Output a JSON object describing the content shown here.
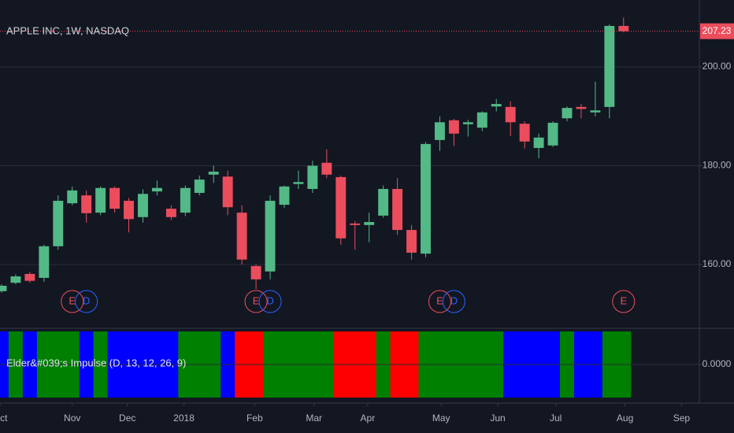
{
  "chart_data": [
    {
      "type": "candlestick",
      "title": "APPLE INC, 1W, NASDAQ",
      "categories": [
        null,
        null,
        null,
        null,
        null,
        null,
        null,
        null,
        null,
        null,
        null,
        null,
        null,
        null,
        null,
        null,
        null,
        null,
        null,
        null,
        null,
        null,
        null,
        null,
        null,
        null,
        null,
        null,
        null,
        null,
        null,
        null,
        null,
        null,
        null,
        null,
        null,
        null,
        null,
        null,
        null,
        null,
        null,
        null,
        null
      ],
      "open": [
        154.6,
        156.3,
        158.1,
        157.3,
        163.7,
        172.4,
        174,
        170.5,
        175.5,
        172.9,
        169.6,
        174.8,
        171.3,
        170.5,
        174.5,
        178.2,
        177.8,
        170.5,
        159.7,
        158.6,
        172.1,
        176.3,
        175.3,
        180.6,
        177.7,
        168.3,
        168,
        169.9,
        175.3,
        167,
        162.2,
        185.2,
        189.2,
        188.4,
        187.7,
        192,
        191.9,
        188.5,
        183.6,
        184.1,
        189.6,
        191.9,
        190.8,
        191.9,
        208.3
      ],
      "high": [
        156,
        158,
        158.5,
        164,
        174,
        175.8,
        175,
        175.8,
        175.8,
        173.5,
        175.2,
        177,
        172,
        176,
        178,
        180,
        179,
        172,
        160,
        174,
        176,
        179,
        181,
        183.3,
        178,
        168.8,
        170.5,
        176,
        177.5,
        168,
        184.8,
        190,
        189.5,
        189.3,
        191,
        193.5,
        193,
        189,
        186.5,
        189,
        192,
        192.5,
        197,
        208.6,
        210
      ],
      "low": [
        154.3,
        156,
        156.3,
        156.5,
        163,
        172,
        168.5,
        170,
        170.5,
        166.5,
        168.5,
        174,
        169,
        169.8,
        174,
        176.5,
        170,
        160,
        155,
        157,
        171.5,
        175.3,
        174.5,
        177.5,
        164,
        163,
        164.5,
        169.5,
        166,
        161,
        161.5,
        183,
        184,
        185.9,
        187,
        191,
        186,
        183.5,
        181.5,
        183.8,
        189,
        189.6,
        190,
        189.6,
        207
      ],
      "close": [
        155.7,
        157.6,
        156.7,
        163.7,
        172.9,
        175,
        170.4,
        175.5,
        171.3,
        169.2,
        174.3,
        175.5,
        169.6,
        175.5,
        177.2,
        178.8,
        171.6,
        161,
        157,
        172.9,
        175.8,
        176.7,
        180,
        178.2,
        165.3,
        168,
        168.6,
        175.3,
        167,
        162.4,
        184.4,
        188.8,
        186.5,
        188.8,
        190.8,
        192.5,
        188.8,
        184.9,
        185.7,
        188.7,
        191.7,
        191.5,
        191.2,
        208.3,
        207.23
      ],
      "up_color": "#53b987",
      "down_color": "#eb4d5c",
      "last_price_color": "#eb4d5c",
      "xlim": [
        -0.11,
        49.36
      ],
      "xticks": [
        {
          "value": -0.1,
          "label": "Oct"
        },
        {
          "value": 5.0,
          "label": "Nov"
        },
        {
          "value": 8.9,
          "label": "Dec"
        },
        {
          "value": 12.9,
          "label": "2018"
        },
        {
          "value": 17.9,
          "label": "Feb"
        },
        {
          "value": 22.1,
          "label": "Mar"
        },
        {
          "value": 25.9,
          "label": "Apr"
        },
        {
          "value": 31.1,
          "label": "May"
        },
        {
          "value": 35.1,
          "label": "Jun"
        },
        {
          "value": 39.2,
          "label": "Jul"
        },
        {
          "value": 44.1,
          "label": "Aug"
        },
        {
          "value": 48.1,
          "label": "Sep"
        }
      ],
      "ylim": [
        147.41,
        213.55
      ],
      "yticks": [
        {
          "value": 160,
          "label": "160.00"
        },
        {
          "value": 180,
          "label": "180.00"
        },
        {
          "value": 200,
          "label": "200.00"
        }
      ],
      "grid": true,
      "events": [
        {
          "label": "E",
          "x": 5,
          "color": "#eb4d5c"
        },
        {
          "label": "D",
          "x": 6,
          "color": "#2962ff"
        },
        {
          "label": "E",
          "x": 18,
          "color": "#eb4d5c"
        },
        {
          "label": "D",
          "x": 19,
          "color": "#2962ff"
        },
        {
          "label": "E",
          "x": 31,
          "color": "#eb4d5c"
        },
        {
          "label": "D",
          "x": 32,
          "color": "#2962ff"
        },
        {
          "label": "E",
          "x": 44,
          "color": "#eb4d5c"
        }
      ]
    },
    {
      "type": "impulse",
      "title": "Elder&#039;s Impulse (D, 13, 12, 26, 9)",
      "colors": [
        "#0000ff",
        "#008000",
        "#0000ff",
        "#008000",
        "#008000",
        "#008000",
        "#0000ff",
        "#008000",
        "#0000ff",
        "#0000ff",
        "#0000ff",
        "#0000ff",
        "#0000ff",
        "#008000",
        "#008000",
        "#008000",
        "#0000ff",
        "#ff0000",
        "#ff0000",
        "#008000",
        "#008000",
        "#008000",
        "#008000",
        "#008000",
        "#ff0000",
        "#ff0000",
        "#ff0000",
        "#008000",
        "#ff0000",
        "#ff0000",
        "#008000",
        "#008000",
        "#008000",
        "#008000",
        "#008000",
        "#008000",
        "#0000ff",
        "#0000ff",
        "#0000ff",
        "#0000ff",
        "#008000",
        "#0000ff",
        "#0000ff",
        "#008000",
        "#008000"
      ],
      "ylim": [
        -1,
        1
      ],
      "yticks": [
        {
          "value": 0,
          "label": "0.0000"
        }
      ]
    }
  ]
}
